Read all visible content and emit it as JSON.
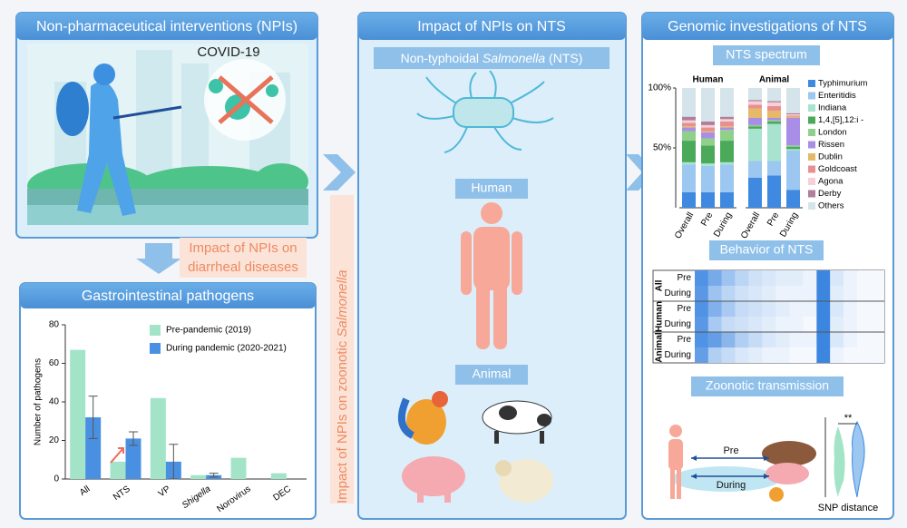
{
  "npi_panel": {
    "title": "Non-pharmaceutical interventions (NPIs)",
    "label": "COVID-19"
  },
  "diarrheal_link": {
    "lines": [
      "Impact of NPIs on",
      "diarrheal diseases"
    ]
  },
  "gi_panel": {
    "title": "Gastrointestinal pathogens",
    "chart": {
      "type": "bar",
      "ylabel": "Number of pathogens",
      "categories": [
        "All",
        "NTS",
        "VP",
        "Shigella",
        "Norovirus",
        "DEC"
      ],
      "category_styles": [
        "normal",
        "normal",
        "normal",
        "italic",
        "normal",
        "normal"
      ],
      "series": [
        {
          "name": "Pre-pandemic (2019)",
          "color": "#a3e4c8",
          "values": [
            67,
            9,
            42,
            2,
            11,
            3
          ]
        },
        {
          "name": "During pandemic (2020-2021)",
          "color": "#4a90e2",
          "values": [
            32,
            21,
            9,
            2,
            null,
            null
          ],
          "errors": [
            11,
            3.5,
            9,
            1,
            null,
            null
          ]
        }
      ],
      "ylim": [
        0,
        80
      ],
      "yticks": [
        0,
        20,
        40,
        60,
        80
      ]
    }
  },
  "nts_panel": {
    "title": "Impact of NPIs on NTS",
    "subtitle": [
      "Non-typhoidal ",
      "Salmonella",
      " (NTS)"
    ],
    "human": "Human",
    "animal": "Animal"
  },
  "zoonotic_link": {
    "parts": [
      "Impact of NPIs on zoonotic ",
      "Salmonella"
    ]
  },
  "genomic_panel": {
    "title": "Genomic investigations of NTS",
    "spectrum": {
      "title": "NTS spectrum",
      "type": "stacked-bar",
      "groups": [
        "Human",
        "Animal"
      ],
      "categories": [
        "Overall",
        "Pre",
        "During",
        "Overall",
        "Pre",
        "During"
      ],
      "ylim": [
        0,
        100
      ],
      "yticks": [
        {
          "value": 50,
          "label": "50%"
        },
        {
          "value": 100,
          "label": "100%"
        }
      ],
      "series": [
        {
          "name": "Typhimurium",
          "color": "#3f8ae0",
          "values": [
            13,
            13,
            13,
            25,
            27,
            15
          ]
        },
        {
          "name": "Enteritidis",
          "color": "#9cc7f0",
          "values": [
            23,
            22,
            23,
            14,
            12,
            33
          ]
        },
        {
          "name": "Indiana",
          "color": "#a8e3cf",
          "values": [
            2,
            2,
            2,
            27,
            31,
            1
          ]
        },
        {
          "name": "1,4,[5],12:i -",
          "color": "#4aaa5a",
          "values": [
            18,
            15,
            18,
            2,
            2,
            2
          ]
        },
        {
          "name": "London",
          "color": "#8fd18a",
          "values": [
            8,
            6,
            9,
            1,
            1,
            1
          ]
        },
        {
          "name": "Rissen",
          "color": "#a98ee8",
          "values": [
            3,
            5,
            2,
            6,
            2,
            23
          ]
        },
        {
          "name": "Dublin",
          "color": "#e5b86a",
          "values": [
            1,
            1,
            1,
            8,
            6,
            1
          ]
        },
        {
          "name": "Goldcoast",
          "color": "#e89090",
          "values": [
            3,
            3,
            4,
            3,
            4,
            1
          ]
        },
        {
          "name": "Agona",
          "color": "#f5d0d8",
          "values": [
            2,
            2,
            2,
            3,
            3,
            1
          ]
        },
        {
          "name": "Derby",
          "color": "#b07f9a",
          "values": [
            3,
            3,
            2,
            1,
            1,
            1
          ]
        },
        {
          "name": "Others",
          "color": "#d4e4ea",
          "values": [
            24,
            28,
            24,
            10,
            11,
            21
          ]
        }
      ]
    },
    "behavior": {
      "title": "Behavior of NTS",
      "groups": [
        "All",
        "Human",
        "Animal"
      ],
      "rows": [
        "Pre",
        "During"
      ],
      "values": [
        [
          0.9,
          0.7,
          0.5,
          0.35,
          0.25,
          0.2,
          0.15,
          0.15,
          0.1,
          1,
          0.2,
          0.1,
          0.05,
          0.05
        ],
        [
          0.85,
          0.5,
          0.35,
          0.25,
          0.2,
          0.15,
          0.1,
          0.1,
          0.1,
          1,
          0.15,
          0.1,
          0.05,
          0.05
        ],
        [
          0.9,
          0.65,
          0.45,
          0.3,
          0.25,
          0.2,
          0.15,
          0.1,
          0.1,
          1,
          0.2,
          0.1,
          0.05,
          0.05
        ],
        [
          0.85,
          0.45,
          0.3,
          0.25,
          0.2,
          0.15,
          0.1,
          0.1,
          0.05,
          1,
          0.15,
          0.1,
          0.05,
          0.05
        ],
        [
          0.9,
          0.8,
          0.6,
          0.4,
          0.3,
          0.2,
          0.15,
          0.1,
          0.1,
          1,
          0.2,
          0.1,
          0.05,
          0.05
        ],
        [
          0.8,
          0.4,
          0.3,
          0.2,
          0.15,
          0.1,
          0.1,
          0.05,
          0.05,
          1,
          0.1,
          0.05,
          0.05,
          0.05
        ]
      ]
    },
    "zoonotic": {
      "title": "Zoonotic transmission",
      "arrows": [
        "Pre",
        "During"
      ],
      "significance": "**",
      "xlabel": "SNP distance"
    }
  }
}
